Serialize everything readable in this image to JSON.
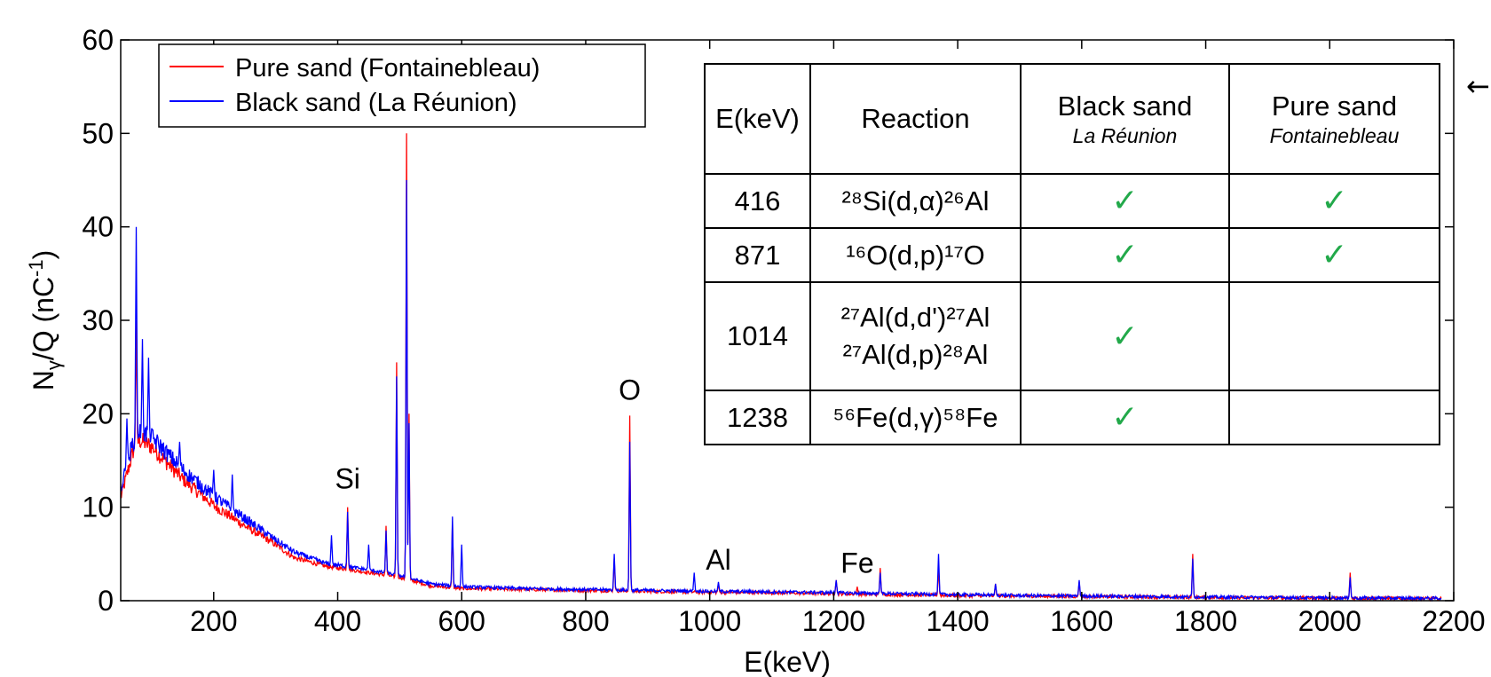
{
  "chart_data": {
    "type": "line",
    "xlabel": "E(keV)",
    "ylabel": "Nγ/Q (nC-1)",
    "xlim": [
      50,
      2200
    ],
    "ylim": [
      0,
      60
    ],
    "xticks": [
      200,
      400,
      600,
      800,
      1000,
      1200,
      1400,
      1600,
      1800,
      2000,
      2200
    ],
    "yticks": [
      0,
      10,
      20,
      30,
      40,
      50,
      60
    ],
    "legend_position": "top-left",
    "series": [
      {
        "name": "Pure sand (Fontainebleau)",
        "color": "#ff0000",
        "continuum": [
          [
            50,
            11
          ],
          [
            60,
            13.5
          ],
          [
            70,
            16
          ],
          [
            80,
            17.2
          ],
          [
            100,
            16.5
          ],
          [
            150,
            13
          ],
          [
            200,
            10.2
          ],
          [
            250,
            8
          ],
          [
            300,
            6
          ],
          [
            330,
            4.6
          ],
          [
            380,
            3.7
          ],
          [
            450,
            3.0
          ],
          [
            500,
            2.5
          ],
          [
            550,
            1.6
          ],
          [
            600,
            1.3
          ],
          [
            700,
            1.2
          ],
          [
            800,
            1.1
          ],
          [
            900,
            1.0
          ],
          [
            1000,
            0.9
          ],
          [
            1100,
            0.85
          ],
          [
            1200,
            0.75
          ],
          [
            1300,
            0.65
          ],
          [
            1400,
            0.55
          ],
          [
            1500,
            0.5
          ],
          [
            1600,
            0.45
          ],
          [
            1700,
            0.4
          ],
          [
            1800,
            0.35
          ],
          [
            1900,
            0.3
          ],
          [
            2000,
            0.28
          ],
          [
            2100,
            0.25
          ],
          [
            2180,
            0.2
          ]
        ],
        "peaks": [
          [
            75,
            30
          ],
          [
            416,
            10
          ],
          [
            478,
            8
          ],
          [
            495,
            25.5
          ],
          [
            511,
            50
          ],
          [
            515,
            20
          ],
          [
            585,
            8.5
          ],
          [
            846,
            4.5
          ],
          [
            871,
            19.8
          ],
          [
            1014,
            1.8
          ],
          [
            1204,
            2.2
          ],
          [
            1238,
            1.5
          ],
          [
            1275,
            3.5
          ],
          [
            1369,
            3.5
          ],
          [
            1461,
            1.8
          ],
          [
            1596,
            2
          ],
          [
            1779,
            5
          ],
          [
            2033,
            3
          ]
        ]
      },
      {
        "name": "Black sand (La Réunion)",
        "color": "#0000ff",
        "continuum": [
          [
            50,
            12
          ],
          [
            60,
            14.5
          ],
          [
            70,
            17
          ],
          [
            80,
            18.2
          ],
          [
            100,
            17.5
          ],
          [
            150,
            14
          ],
          [
            200,
            11.2
          ],
          [
            250,
            8.8
          ],
          [
            300,
            6.5
          ],
          [
            330,
            5.2
          ],
          [
            380,
            4.0
          ],
          [
            450,
            3.3
          ],
          [
            500,
            2.7
          ],
          [
            550,
            1.8
          ],
          [
            600,
            1.5
          ],
          [
            700,
            1.3
          ],
          [
            800,
            1.2
          ],
          [
            900,
            1.1
          ],
          [
            1000,
            1.0
          ],
          [
            1100,
            0.95
          ],
          [
            1200,
            0.85
          ],
          [
            1300,
            0.75
          ],
          [
            1400,
            0.65
          ],
          [
            1500,
            0.55
          ],
          [
            1600,
            0.5
          ],
          [
            1700,
            0.45
          ],
          [
            1800,
            0.4
          ],
          [
            1900,
            0.35
          ],
          [
            2000,
            0.3
          ],
          [
            2100,
            0.28
          ],
          [
            2180,
            0.25
          ]
        ],
        "peaks": [
          [
            60,
            19.5
          ],
          [
            75,
            40
          ],
          [
            85,
            28
          ],
          [
            95,
            26
          ],
          [
            145,
            17
          ],
          [
            200,
            14
          ],
          [
            230,
            13.5
          ],
          [
            390,
            7
          ],
          [
            416,
            9.5
          ],
          [
            450,
            6
          ],
          [
            478,
            7.5
          ],
          [
            495,
            24
          ],
          [
            511,
            45
          ],
          [
            515,
            19
          ],
          [
            585,
            9
          ],
          [
            600,
            6
          ],
          [
            846,
            5
          ],
          [
            871,
            17
          ],
          [
            975,
            3
          ],
          [
            1014,
            2
          ],
          [
            1204,
            2.2
          ],
          [
            1275,
            3
          ],
          [
            1369,
            5
          ],
          [
            1461,
            1.8
          ],
          [
            1596,
            2.2
          ],
          [
            1779,
            4.5
          ],
          [
            2033,
            2.5
          ]
        ]
      }
    ],
    "annotations": [
      {
        "text": "Si",
        "x": 416,
        "y": 12
      },
      {
        "text": "O",
        "x": 871,
        "y": 21.5
      },
      {
        "text": "Al",
        "x": 1014,
        "y": 3.3
      },
      {
        "text": "Fe",
        "x": 1238,
        "y": 3.0
      }
    ]
  },
  "table": {
    "headers": [
      {
        "text": "E(keV)"
      },
      {
        "text": "Reaction"
      },
      {
        "text": "Black sand",
        "sub": "La Réunion"
      },
      {
        "text": "Pure sand",
        "sub": "Fontainebleau"
      }
    ],
    "rows": [
      {
        "energy": "416",
        "reactions": [
          "²⁸Si(d,α)²⁶Al"
        ],
        "black": "✓",
        "pure": "✓"
      },
      {
        "energy": "871",
        "reactions": [
          "¹⁶O(d,p)¹⁷O"
        ],
        "black": "✓",
        "pure": "✓"
      },
      {
        "energy": "1014",
        "reactions": [
          "²⁷Al(d,d')²⁷Al",
          "²⁷Al(d,p)²⁸Al"
        ],
        "black": "✓",
        "pure": ""
      },
      {
        "energy": "1238",
        "reactions": [
          "⁵⁶Fe(d,γ)⁵⁸Fe"
        ],
        "black": "✓",
        "pure": ""
      }
    ]
  },
  "arrow_glyph": "←"
}
